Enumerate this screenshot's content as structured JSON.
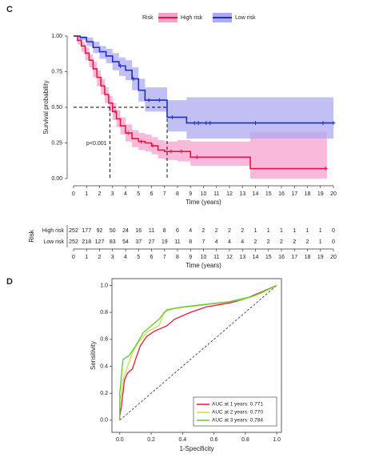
{
  "chart_data": [
    {
      "type": "km",
      "panel_label": "C",
      "legend_title": "Risk",
      "xlabel": "Time (years)",
      "ylabel": "Survival probability",
      "annotation": "p<0.001",
      "xlim": [
        0,
        20
      ],
      "xticks": [
        0,
        1,
        2,
        3,
        4,
        5,
        6,
        7,
        8,
        9,
        10,
        11,
        12,
        13,
        14,
        15,
        16,
        17,
        18,
        19,
        20
      ],
      "ylim": [
        0,
        1
      ],
      "yticks": [
        {
          "value": 0,
          "label": "0.00"
        },
        0.25,
        {
          "value": 0.5,
          "label": "0.50"
        },
        0.75,
        {
          "value": 1,
          "label": "1.00"
        }
      ],
      "median_level": 0.5,
      "series": [
        {
          "name": "High risk",
          "color": "#e8173f",
          "band_color": "#f7a1cf",
          "x": [
            0,
            0.3,
            0.6,
            0.9,
            1.2,
            1.5,
            1.8,
            2.1,
            2.4,
            2.7,
            3.0,
            3.3,
            3.6,
            4.0,
            4.5,
            5.0,
            5.5,
            6.0,
            6.5,
            7.0,
            8.0,
            9.0,
            13.6,
            19.5
          ],
          "values": [
            1,
            0.97,
            0.93,
            0.88,
            0.83,
            0.77,
            0.71,
            0.65,
            0.59,
            0.53,
            0.47,
            0.42,
            0.37,
            0.32,
            0.28,
            0.26,
            0.25,
            0.23,
            0.2,
            0.19,
            0.19,
            0.15,
            0.07,
            0.07
          ],
          "ci_upper": [
            1,
            1,
            0.96,
            0.92,
            0.87,
            0.82,
            0.76,
            0.7,
            0.64,
            0.58,
            0.53,
            0.48,
            0.43,
            0.38,
            0.34,
            0.32,
            0.31,
            0.29,
            0.27,
            0.26,
            0.27,
            0.26,
            0.33,
            0.33
          ],
          "ci_lower": [
            1,
            0.94,
            0.89,
            0.83,
            0.78,
            0.71,
            0.65,
            0.59,
            0.53,
            0.47,
            0.41,
            0.36,
            0.31,
            0.26,
            0.22,
            0.2,
            0.19,
            0.17,
            0.14,
            0.13,
            0.12,
            0.09,
            0,
            0
          ],
          "median": 2.8,
          "censored": [
            3.2,
            4.2,
            5.2,
            6.1,
            7.5,
            8.3,
            9.5,
            19.4
          ]
        },
        {
          "name": "Low risk",
          "color": "#1f2fbf",
          "band_color": "#adaaf0",
          "x": [
            0,
            0.5,
            1.0,
            1.5,
            2.0,
            2.5,
            3.0,
            3.5,
            4.0,
            4.5,
            5.0,
            5.5,
            7.2,
            8.7,
            20
          ],
          "values": [
            1,
            0.99,
            0.96,
            0.92,
            0.89,
            0.86,
            0.82,
            0.79,
            0.76,
            0.7,
            0.62,
            0.55,
            0.43,
            0.39,
            0.39
          ],
          "ci_upper": [
            1,
            1,
            0.99,
            0.96,
            0.93,
            0.91,
            0.88,
            0.85,
            0.83,
            0.78,
            0.7,
            0.64,
            0.55,
            0.57,
            0.57
          ],
          "ci_lower": [
            1,
            0.97,
            0.93,
            0.88,
            0.84,
            0.81,
            0.76,
            0.72,
            0.69,
            0.62,
            0.54,
            0.47,
            0.33,
            0.28,
            0.26
          ],
          "median": 7.2,
          "censored": [
            3.6,
            4.6,
            5.8,
            6.6,
            7.6,
            9.3,
            9.6,
            10.2,
            10.5,
            14,
            19.2,
            20
          ]
        }
      ]
    },
    {
      "type": "risk_table",
      "ylabel": "Risk",
      "xlabel": "Time (years)",
      "xlim": [
        0,
        20
      ],
      "xticks": [
        0,
        1,
        2,
        3,
        4,
        5,
        6,
        7,
        8,
        9,
        10,
        11,
        12,
        13,
        14,
        15,
        16,
        17,
        18,
        19,
        20
      ],
      "x": [
        0,
        1,
        2,
        3,
        4,
        5,
        6,
        7,
        8,
        9,
        10,
        11,
        12,
        13,
        14,
        15,
        16,
        17,
        18,
        19,
        20
      ],
      "series": [
        {
          "name": "High risk",
          "color": "#e8173f",
          "values": [
            252,
            177,
            92,
            50,
            24,
            16,
            11,
            8,
            6,
            4,
            2,
            2,
            2,
            2,
            1,
            1,
            1,
            1,
            1,
            1,
            0
          ]
        },
        {
          "name": "Low risk",
          "color": "#1f2fbf",
          "values": [
            252,
            218,
            127,
            83,
            54,
            37,
            27,
            19,
            11,
            8,
            7,
            4,
            4,
            4,
            2,
            2,
            2,
            2,
            2,
            1,
            0
          ]
        }
      ]
    },
    {
      "type": "roc",
      "panel_label": "D",
      "xlabel": "1-Specificity",
      "ylabel": "Sensitivity",
      "xlim": [
        -0.05,
        1.03
      ],
      "ylim": [
        -0.09,
        1.05
      ],
      "xticks": [
        {
          "value": 0,
          "label": "0.0"
        },
        0.2,
        0.4,
        0.6,
        0.8,
        {
          "value": 1,
          "label": "1.0"
        }
      ],
      "yticks": [
        {
          "value": 0,
          "label": "0.0"
        },
        0.2,
        0.4,
        0.6,
        0.8,
        {
          "value": 1,
          "label": "1.0"
        }
      ],
      "series": [
        {
          "name": "AUC at 1 years: 0.771",
          "color": "#e8173f",
          "x": [
            0,
            0,
            0.01,
            0.02,
            0.03,
            0.05,
            0.08,
            0.1,
            0.13,
            0.17,
            0.22,
            0.3,
            0.35,
            0.45,
            0.55,
            0.7,
            0.8,
            0.9,
            1
          ],
          "values": [
            0,
            0.03,
            0.1,
            0.2,
            0.3,
            0.35,
            0.38,
            0.45,
            0.55,
            0.62,
            0.66,
            0.7,
            0.75,
            0.8,
            0.84,
            0.87,
            0.9,
            0.95,
            1
          ]
        },
        {
          "name": "AUC at 2 years: 0.770",
          "color": "#c8e03a",
          "x": [
            0,
            0,
            0.02,
            0.05,
            0.08,
            0.12,
            0.18,
            0.25,
            0.28,
            0.35,
            0.5,
            0.65,
            0.8,
            0.9,
            1
          ],
          "values": [
            0,
            0.1,
            0.3,
            0.4,
            0.5,
            0.58,
            0.66,
            0.7,
            0.8,
            0.83,
            0.85,
            0.87,
            0.9,
            0.94,
            1
          ]
        },
        {
          "name": "AUC at 3 years: 0.784",
          "color": "#5dc93a",
          "x": [
            0,
            0,
            0.02,
            0.06,
            0.1,
            0.15,
            0.2,
            0.25,
            0.3,
            0.4,
            0.55,
            0.7,
            0.85,
            1
          ],
          "values": [
            0,
            0.2,
            0.45,
            0.48,
            0.55,
            0.65,
            0.7,
            0.75,
            0.82,
            0.84,
            0.86,
            0.88,
            0.92,
            1
          ]
        }
      ]
    }
  ]
}
